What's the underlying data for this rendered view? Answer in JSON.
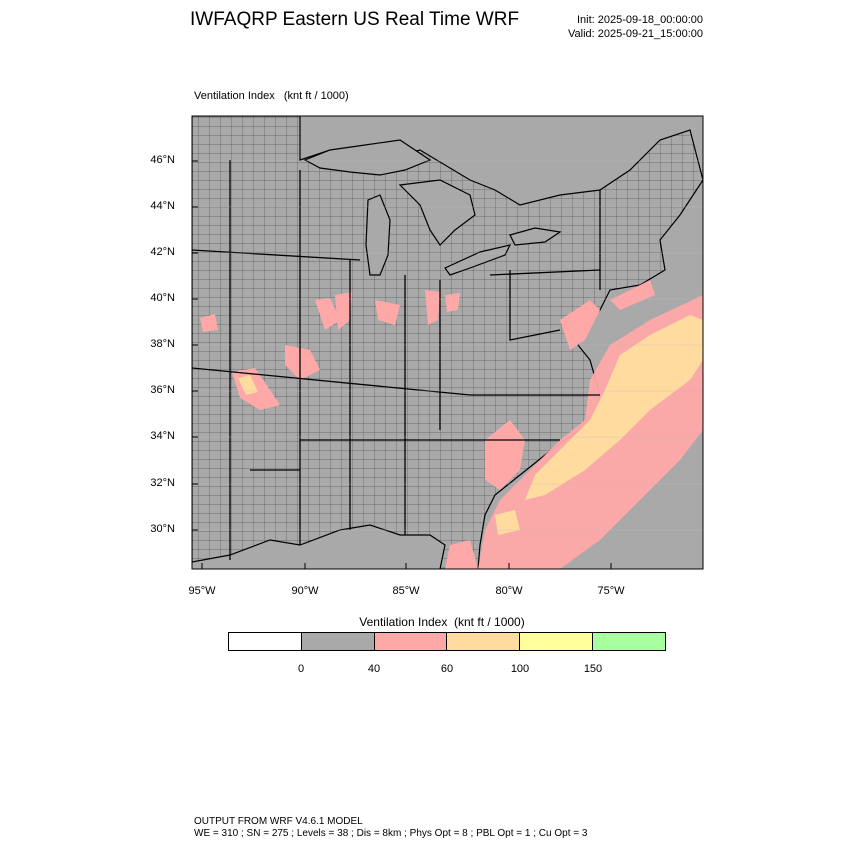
{
  "header": {
    "title": "IWFAQRP Eastern US Real Time WRF",
    "init": "Init: 2025-09-18_00:00:00",
    "valid": "Valid: 2025-09-21_15:00:00"
  },
  "plot": {
    "field_label": "Ventilation Index   (knt ft / 1000)",
    "lat_labels": [
      "46°N",
      "44°N",
      "42°N",
      "40°N",
      "38°N",
      "36°N",
      "34°N",
      "32°N",
      "30°N"
    ],
    "lon_labels": [
      "95°W",
      "90°W",
      "85°W",
      "80°W",
      "75°W"
    ]
  },
  "legend": {
    "title": "Ventilation Index  (knt ft / 1000)",
    "ticks": [
      "0",
      "40",
      "60",
      "100",
      "150"
    ],
    "colors": [
      "#ffffff",
      "#a9a9a9",
      "#ffa8a8",
      "#ffdba0",
      "#ffff9c",
      "#a8ffa0"
    ]
  },
  "footer": {
    "line1": "OUTPUT FROM WRF V4.6.1 MODEL",
    "line2": "WE = 310 ; SN = 275 ; Levels = 38 ; Dis = 8km ; Phys Opt = 8 ; PBL Opt = 1 ; Cu Opt = 3"
  }
}
